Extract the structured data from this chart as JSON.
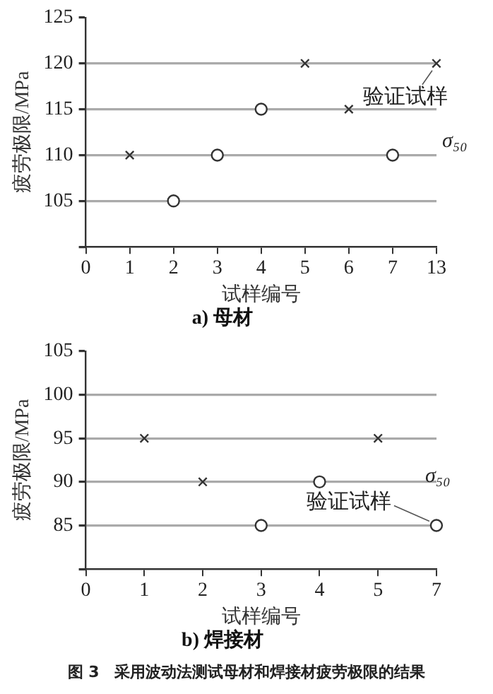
{
  "chart_data": [
    {
      "type": "scatter",
      "title": "a) 母材",
      "xlabel": "试样编号",
      "ylabel": "疲劳极限/MPa",
      "categories": [
        "0",
        "1",
        "2",
        "3",
        "4",
        "5",
        "6",
        "7",
        "13"
      ],
      "ylim": [
        100,
        125
      ],
      "yticks": [
        {
          "value": 100,
          "label": null
        },
        105,
        110,
        115,
        120,
        125
      ],
      "grid": "y",
      "legend": false,
      "series": [
        {
          "color": "#333333",
          "marker": "cross",
          "x": [
            "1",
            "5",
            "6",
            "13"
          ],
          "values": [
            110,
            120,
            115,
            120
          ]
        },
        {
          "color": "#333333",
          "marker": "circle",
          "x": [
            "2",
            "3",
            "4",
            "7"
          ],
          "values": [
            105,
            110,
            115,
            110
          ]
        }
      ],
      "annotations": [
        {
          "text": "验证试样",
          "x": "13",
          "y": 120
        },
        "σ₅₀"
      ]
    },
    {
      "type": "scatter",
      "title": "b) 焊接材",
      "xlabel": "试样编号",
      "ylabel": "疲劳极限/MPa",
      "categories": [
        "0",
        "1",
        "2",
        "3",
        "4",
        "5",
        "7"
      ],
      "ylim": [
        80,
        105
      ],
      "yticks": [
        {
          "value": 80,
          "label": null
        },
        85,
        90,
        95,
        100,
        105
      ],
      "grid": "y",
      "legend": false,
      "series": [
        {
          "color": "#333333",
          "marker": "cross",
          "x": [
            "1",
            "2",
            "5"
          ],
          "values": [
            95,
            90,
            95
          ]
        },
        {
          "color": "#333333",
          "marker": "circle",
          "x": [
            "3",
            "4",
            "7"
          ],
          "values": [
            85,
            90,
            85
          ]
        }
      ],
      "annotations": [
        {
          "text": "验证试样",
          "x": "7",
          "y": 85
        },
        "σ₅₀",
        "图 3　采用波动法测试母材和焊接材疲劳极限的结果"
      ]
    }
  ]
}
